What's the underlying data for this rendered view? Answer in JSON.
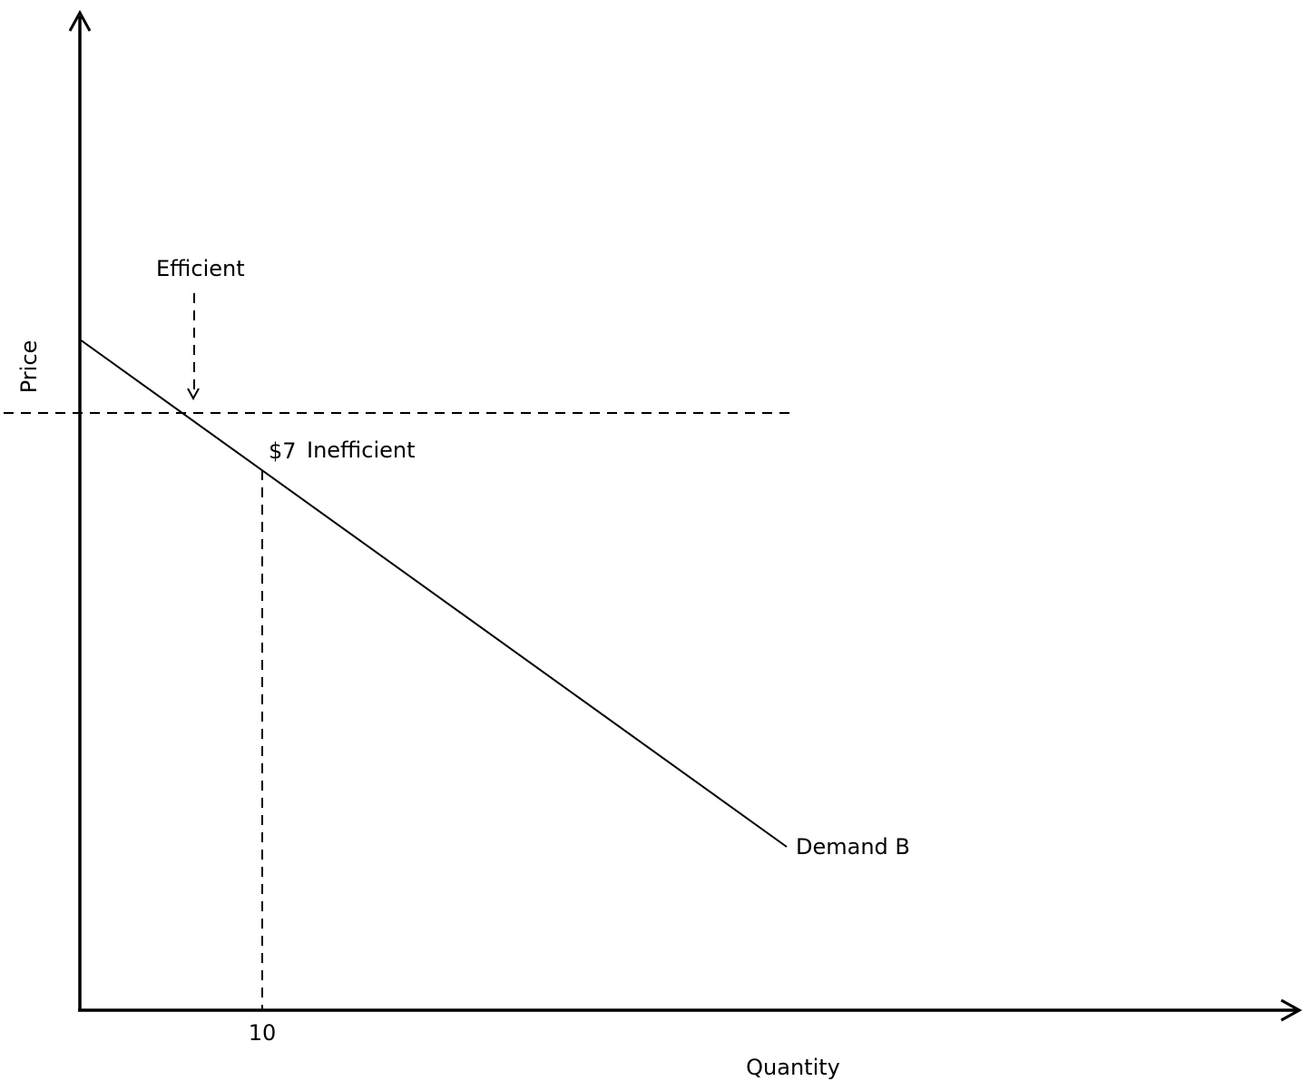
{
  "diagram": {
    "axes": {
      "y_label": "Price",
      "x_label": "Quantity"
    },
    "curve": {
      "name": "Demand B"
    },
    "annotations": {
      "efficient": "Efficient",
      "price_label": "$7",
      "inefficient": "Inefficient"
    },
    "ticks": {
      "quantity_10": "10"
    },
    "colors": {
      "line": "#000000",
      "background": "#ffffff"
    }
  }
}
